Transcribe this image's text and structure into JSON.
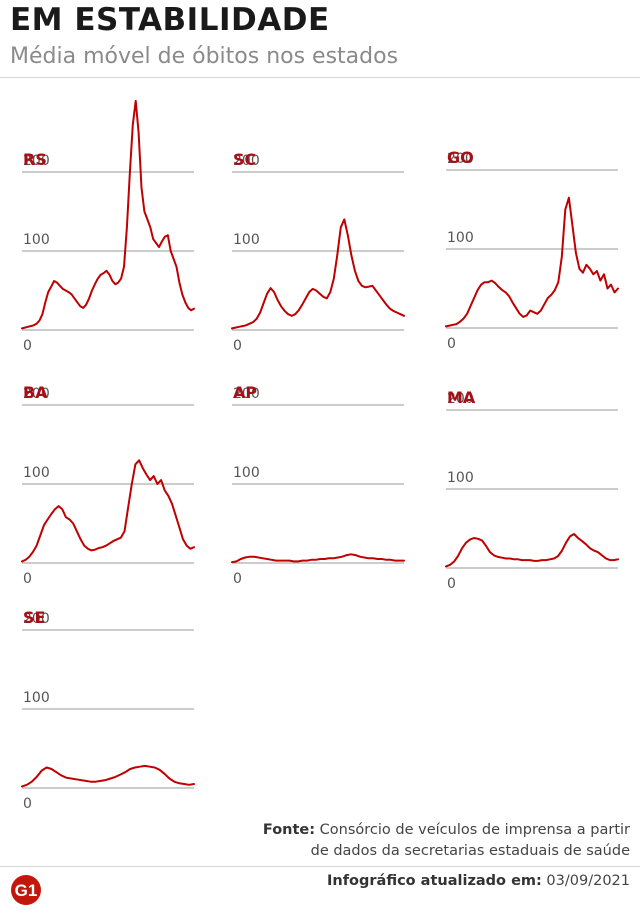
{
  "title": "EM ESTABILIDADE",
  "subtitle": "Média móvel de óbitos nos estados",
  "colors": {
    "line": "#c00000",
    "label": "#a50f15",
    "grid": "#9a9a9a",
    "tick": "#555555",
    "logo": "#c4170c"
  },
  "source": {
    "label": "Fonte:",
    "line1": "Consórcio de veículos de imprensa a partir",
    "line2": "de dados da secretarias estaduais de saúde"
  },
  "footer": {
    "label": "Infográfico atualizado em:",
    "date": "03/09/2021",
    "logo_text": "G1"
  },
  "chart_data": [
    {
      "type": "line",
      "title": "RS",
      "ylim": [
        0,
        200
      ],
      "yticks": [
        0,
        100,
        200
      ],
      "values": [
        2,
        3,
        4,
        5,
        6,
        8,
        12,
        20,
        35,
        48,
        55,
        62,
        60,
        56,
        52,
        50,
        48,
        45,
        40,
        35,
        30,
        28,
        32,
        40,
        50,
        58,
        65,
        70,
        72,
        75,
        70,
        62,
        58,
        60,
        65,
        80,
        130,
        200,
        260,
        290,
        250,
        180,
        150,
        140,
        130,
        115,
        110,
        105,
        112,
        118,
        120,
        100,
        90,
        80,
        60,
        45,
        35,
        28,
        25,
        27
      ]
    },
    {
      "type": "line",
      "title": "SC",
      "ylim": [
        0,
        200
      ],
      "yticks": [
        0,
        100,
        200
      ],
      "values": [
        2,
        3,
        4,
        5,
        6,
        8,
        10,
        14,
        22,
        34,
        46,
        53,
        48,
        38,
        30,
        24,
        20,
        18,
        20,
        25,
        32,
        40,
        48,
        52,
        50,
        46,
        42,
        40,
        48,
        65,
        95,
        130,
        140,
        120,
        95,
        75,
        62,
        56,
        54,
        55,
        56,
        50,
        44,
        38,
        32,
        27,
        24,
        22,
        20,
        18
      ]
    },
    {
      "type": "line",
      "title": "GO",
      "ylim": [
        0,
        200
      ],
      "yticks": [
        0,
        100,
        200
      ],
      "values": [
        2,
        3,
        4,
        5,
        8,
        12,
        18,
        28,
        38,
        48,
        55,
        58,
        58,
        60,
        57,
        52,
        48,
        45,
        40,
        32,
        25,
        18,
        14,
        16,
        22,
        20,
        18,
        22,
        30,
        38,
        42,
        48,
        58,
        90,
        150,
        165,
        130,
        95,
        75,
        70,
        80,
        75,
        68,
        72,
        60,
        68,
        50,
        55,
        45,
        50
      ]
    },
    {
      "type": "line",
      "title": "BA",
      "ylim": [
        0,
        200
      ],
      "yticks": [
        0,
        100,
        200
      ],
      "values": [
        2,
        4,
        8,
        14,
        22,
        35,
        48,
        55,
        62,
        68,
        72,
        68,
        58,
        55,
        50,
        40,
        30,
        22,
        18,
        16,
        17,
        19,
        20,
        22,
        25,
        28,
        30,
        32,
        40,
        70,
        100,
        125,
        130,
        120,
        112,
        105,
        110,
        100,
        105,
        92,
        85,
        75,
        60,
        45,
        30,
        22,
        18,
        20
      ]
    },
    {
      "type": "line",
      "title": "AP",
      "ylim": [
        0,
        200
      ],
      "yticks": [
        0,
        100,
        200
      ],
      "values": [
        1,
        2,
        5,
        7,
        8,
        8,
        7,
        6,
        5,
        4,
        3,
        3,
        3,
        3,
        2,
        2,
        3,
        3,
        4,
        4,
        5,
        5,
        6,
        6,
        7,
        8,
        10,
        11,
        10,
        8,
        7,
        6,
        6,
        5,
        5,
        4,
        4,
        3,
        3,
        3
      ]
    },
    {
      "type": "line",
      "title": "MA",
      "ylim": [
        0,
        200
      ],
      "yticks": [
        0,
        100,
        200
      ],
      "values": [
        2,
        4,
        8,
        15,
        25,
        32,
        36,
        38,
        37,
        35,
        28,
        20,
        16,
        14,
        13,
        12,
        12,
        11,
        11,
        10,
        10,
        10,
        9,
        9,
        10,
        10,
        11,
        12,
        15,
        22,
        32,
        40,
        43,
        38,
        34,
        30,
        25,
        22,
        20,
        16,
        12,
        10,
        10,
        11
      ]
    },
    {
      "type": "line",
      "title": "SE",
      "ylim": [
        0,
        200
      ],
      "yticks": [
        0,
        100,
        200
      ],
      "values": [
        2,
        4,
        8,
        14,
        22,
        26,
        24,
        20,
        16,
        13,
        12,
        11,
        10,
        9,
        8,
        8,
        9,
        10,
        12,
        14,
        17,
        20,
        24,
        26,
        27,
        28,
        27,
        26,
        23,
        18,
        12,
        8,
        6,
        5,
        4,
        5
      ]
    }
  ]
}
